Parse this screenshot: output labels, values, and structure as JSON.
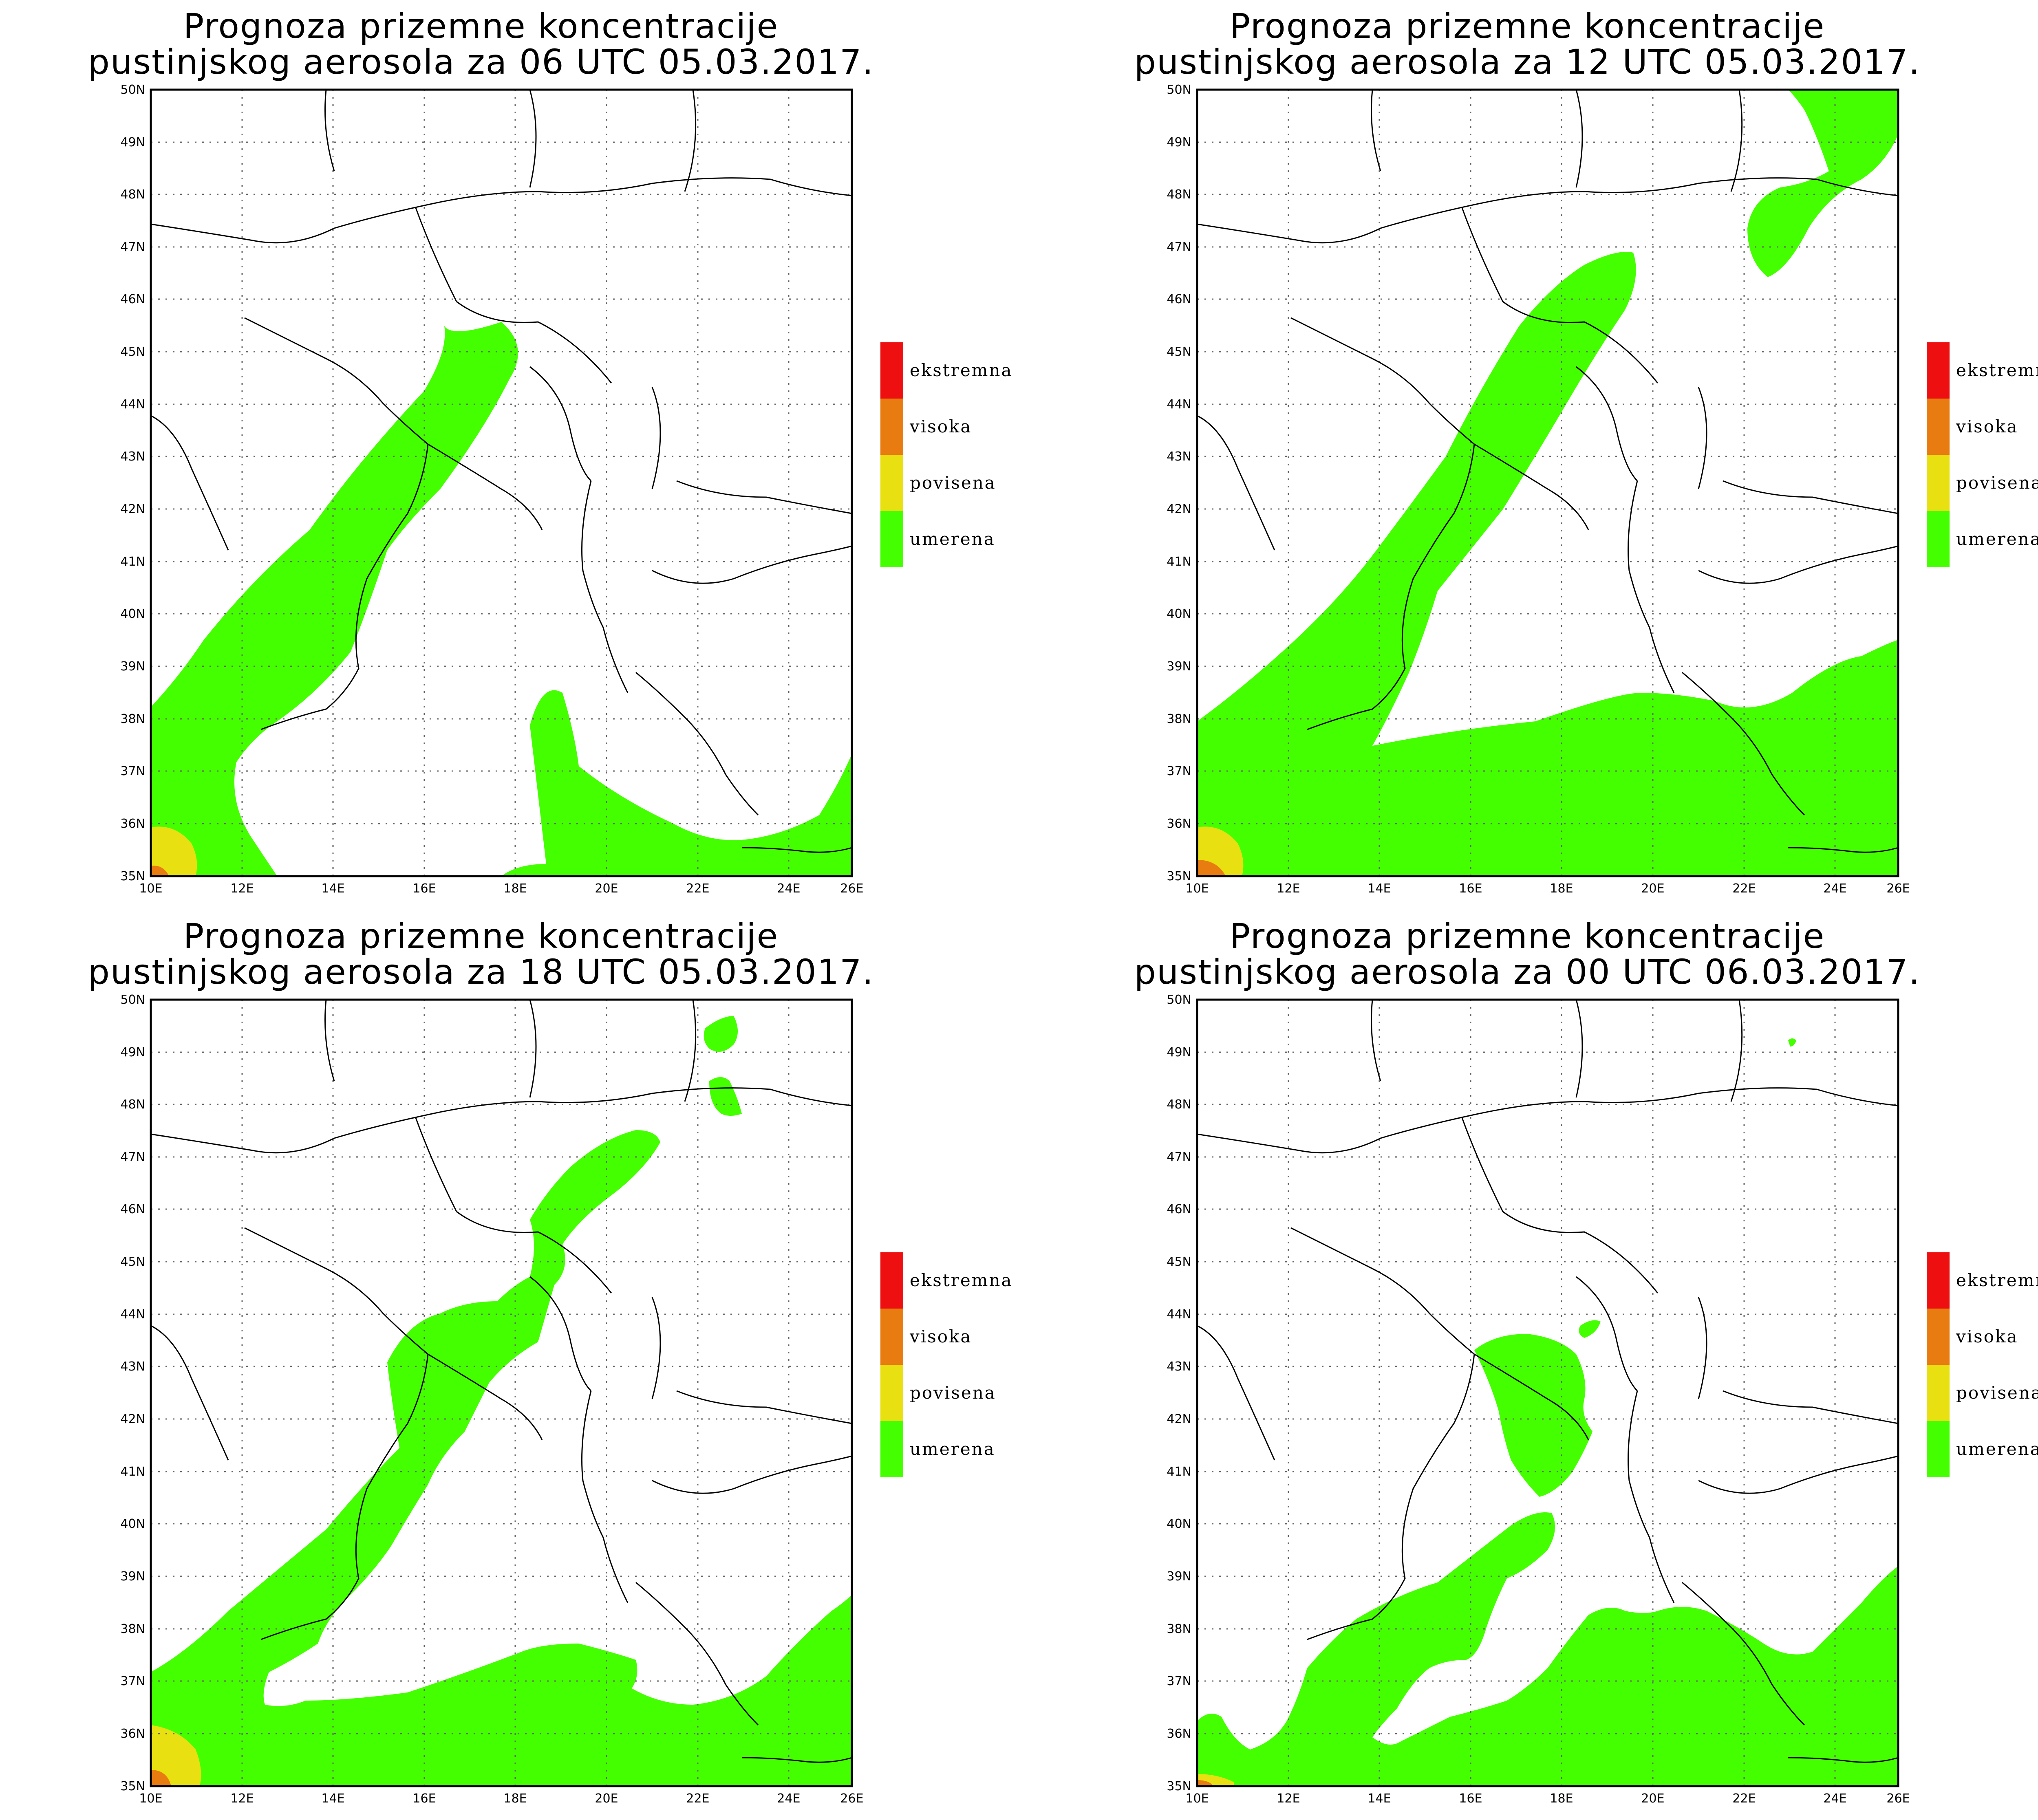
{
  "legend": [
    {
      "label": "ekstremna",
      "color": "#ee1010"
    },
    {
      "label": "visoka",
      "color": "#e87c10"
    },
    {
      "label": "povisena",
      "color": "#e8e010"
    },
    {
      "label": "umerena",
      "color": "#44ff00"
    }
  ],
  "axes": {
    "x_ticks": [
      "10E",
      "12E",
      "14E",
      "16E",
      "18E",
      "20E",
      "22E",
      "24E",
      "26E"
    ],
    "y_ticks": [
      "35N",
      "36N",
      "37N",
      "38N",
      "39N",
      "40N",
      "41N",
      "42N",
      "43N",
      "44N",
      "45N",
      "46N",
      "47N",
      "48N",
      "49N",
      "50N"
    ]
  },
  "panels": [
    {
      "title_line1": "Prognoza prizemne koncentracije",
      "title_line2": "pustinjskog aerosola za 06 UTC 05.03.2017."
    },
    {
      "title_line1": "Prognoza prizemne koncentracije",
      "title_line2": "pustinjskog aerosola za 12 UTC 05.03.2017."
    },
    {
      "title_line1": "Prognoza prizemne koncentracije",
      "title_line2": "pustinjskog aerosola za 18 UTC 05.03.2017."
    },
    {
      "title_line1": "Prognoza prizemne koncentracije",
      "title_line2": "pustinjskog aerosola za 00 UTC 06.03.2017."
    }
  ]
}
